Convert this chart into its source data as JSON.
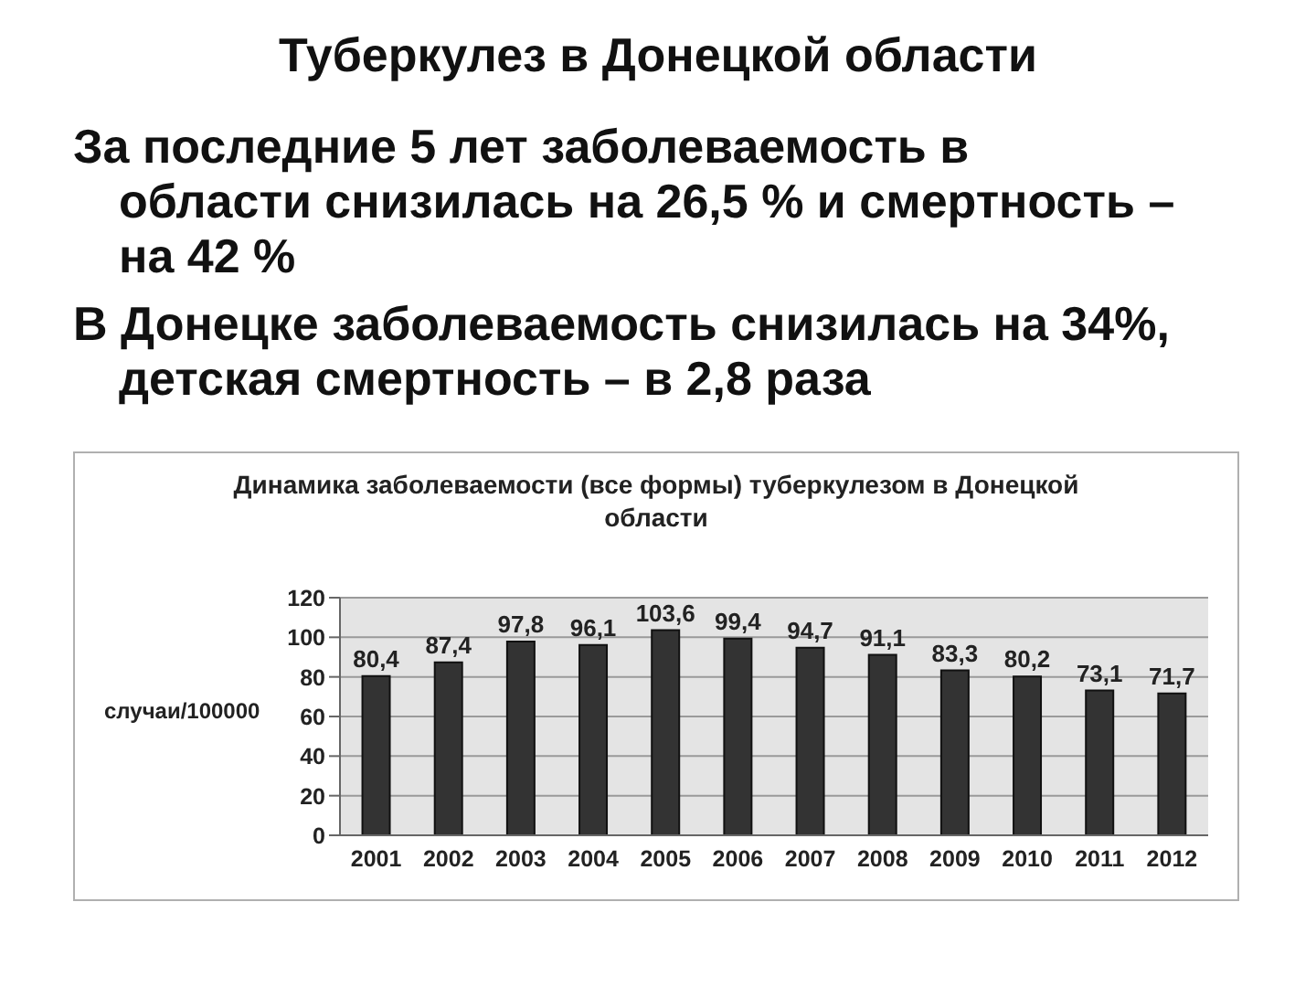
{
  "chart_data": {
    "type": "bar",
    "title": "Туберкулез в Донецкой области",
    "annotations": [
      "За последние 5 лет заболеваемость в\nобласти снизилась на 26,5 % и смертность –\nна 42 %",
      "В Донецке заболеваемость снизилась на 34%,\nдетская смертность – в 2,8 раза"
    ],
    "subtitle": "Динамика заболеваемости (все формы) туберкулезом в Донецкой области",
    "ylabel": "случаи/100000",
    "categories": [
      "2001",
      "2002",
      "2003",
      "2004",
      "2005",
      "2006",
      "2007",
      "2008",
      "2009",
      "2010",
      "2011",
      "2012"
    ],
    "values": [
      80.4,
      87.4,
      97.8,
      96.1,
      103.6,
      99.4,
      94.7,
      91.1,
      83.3,
      80.2,
      73.1,
      71.7
    ],
    "value_labels": [
      "80,4",
      "87,4",
      "97,8",
      "96,1",
      "103,6",
      "99,4",
      "94,7",
      "91,1",
      "83,3",
      "80,2",
      "73,1",
      "71,7"
    ],
    "color": "#333333",
    "ylim": [
      0,
      120
    ],
    "yticks": [
      0,
      20,
      40,
      60,
      80,
      100,
      120
    ],
    "grid": "y"
  }
}
